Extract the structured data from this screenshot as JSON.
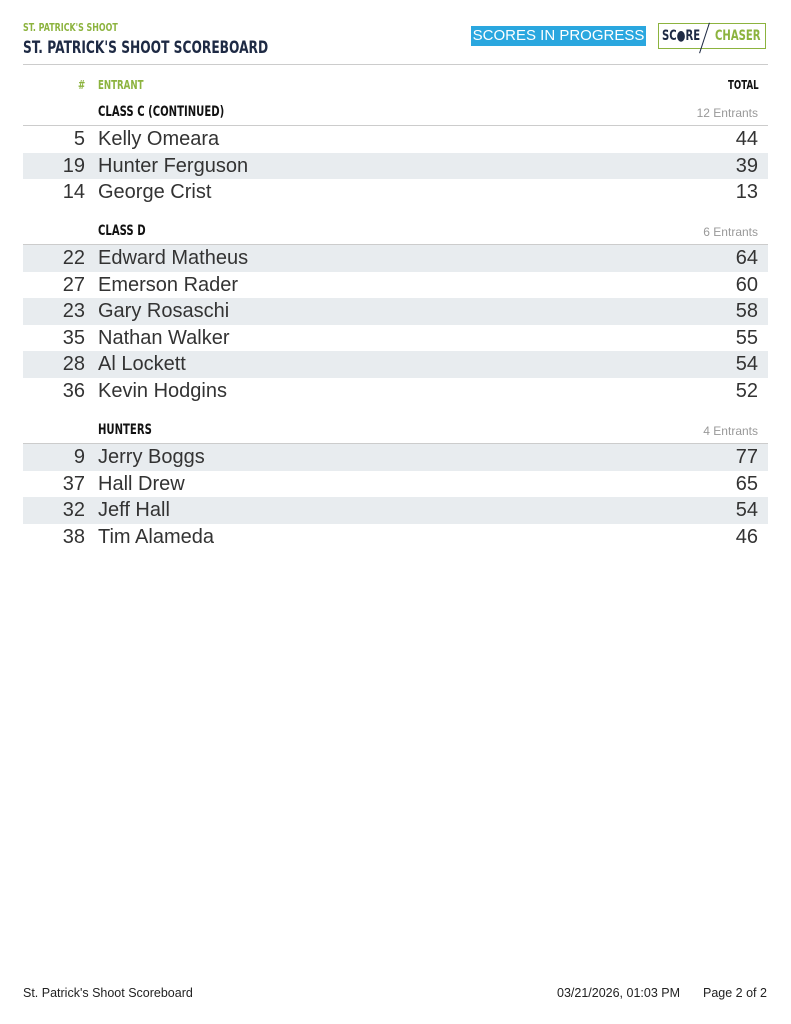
{
  "header": {
    "subtitle": "ST. PATRICK'S SHOOT",
    "title": "ST. PATRICK'S SHOOT SCOREBOARD",
    "status_badge": "SCORES IN PROGRESS",
    "logo_text": "SCORE/CHASER",
    "logo_left": "SC●RE",
    "logo_right": "CHASER"
  },
  "columns": {
    "number": "#",
    "entrant": "ENTRANT",
    "total": "TOTAL"
  },
  "groups": [
    {
      "name": "CLASS C (CONTINUED)",
      "count": "12 Entrants",
      "rows": [
        {
          "num": "5",
          "name": "Kelly Omeara",
          "total": "44"
        },
        {
          "num": "19",
          "name": "Hunter Ferguson",
          "total": "39"
        },
        {
          "num": "14",
          "name": "George Crist",
          "total": "13"
        }
      ]
    },
    {
      "name": "CLASS D",
      "count": "6 Entrants",
      "rows": [
        {
          "num": "22",
          "name": "Edward Matheus",
          "total": "64"
        },
        {
          "num": "27",
          "name": "Emerson Rader",
          "total": "60"
        },
        {
          "num": "23",
          "name": "Gary Rosaschi",
          "total": "58"
        },
        {
          "num": "35",
          "name": "Nathan Walker",
          "total": "55"
        },
        {
          "num": "28",
          "name": "Al Lockett",
          "total": "54"
        },
        {
          "num": "36",
          "name": "Kevin Hodgins",
          "total": "52"
        }
      ]
    },
    {
      "name": "HUNTERS",
      "count": "4 Entrants",
      "rows": [
        {
          "num": "9",
          "name": "Jerry Boggs",
          "total": "77"
        },
        {
          "num": "37",
          "name": "Hall Drew",
          "total": "65"
        },
        {
          "num": "32",
          "name": "Jeff Hall",
          "total": "54"
        },
        {
          "num": "38",
          "name": "Tim Alameda",
          "total": "46"
        }
      ]
    }
  ],
  "footer": {
    "title": "St. Patrick's Shoot Scoreboard",
    "timestamp": "03/21/2026, 01:03 PM",
    "page": "Page 2 of 2"
  },
  "colors": {
    "accent_green": "#8cb33e",
    "navy": "#1e2a44",
    "badge_blue": "#2aa7df",
    "row_shade": "#e8ecef"
  }
}
